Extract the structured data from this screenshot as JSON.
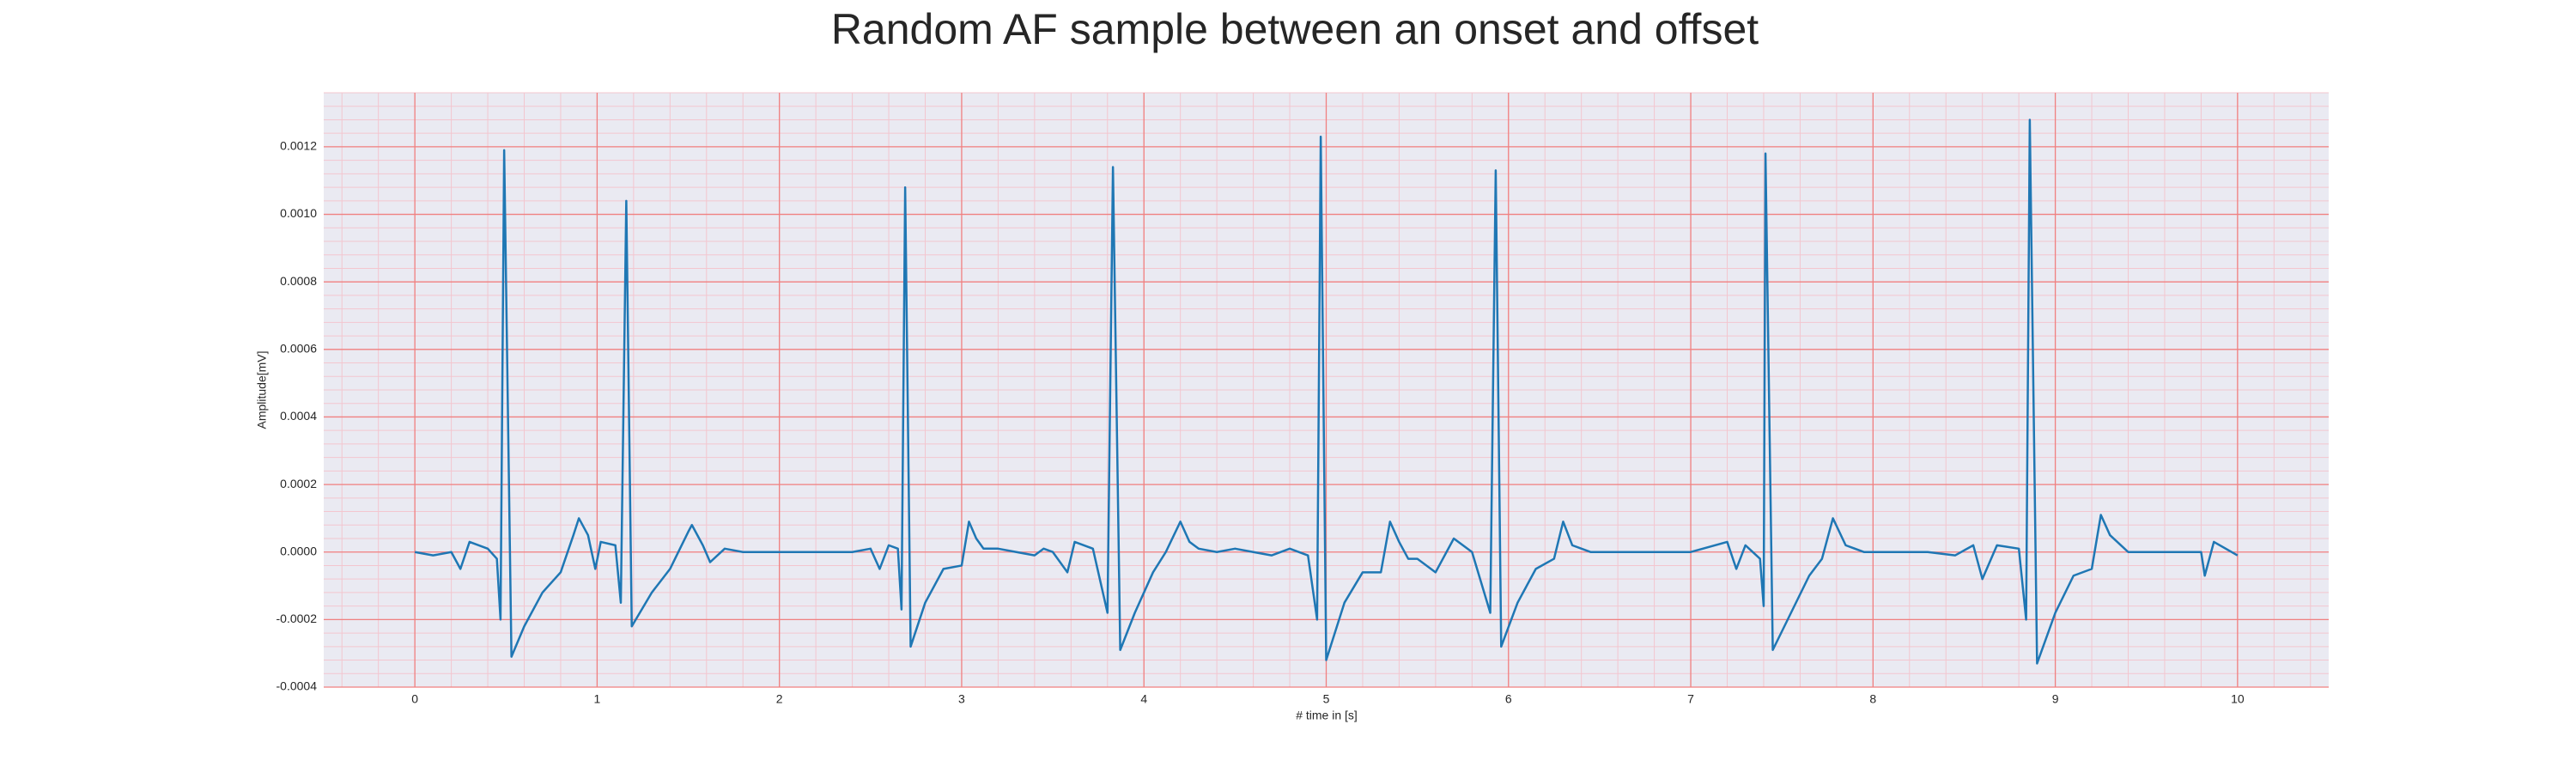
{
  "chart_data": {
    "type": "line",
    "title": "Random AF sample between an onset and offset",
    "xlabel": "# time in [s]",
    "ylabel": "Amplitude[mV]",
    "color": "#1f77b4",
    "background": "#eaeaf2",
    "grid": true,
    "grid_color": "#f08080",
    "minor_grid": true,
    "minor_grid_color": "#f3c6cf",
    "xlim": [
      -0.5,
      10.5
    ],
    "xticks": [
      0,
      1,
      2,
      3,
      4,
      5,
      6,
      7,
      8,
      9,
      10
    ],
    "ylim": [
      -0.0004,
      0.00136
    ],
    "yticks": [
      -0.0004,
      -0.0002,
      {
        "value": 0,
        "label": "0.0000"
      },
      0.0002,
      0.0004,
      0.0006,
      0.0008,
      {
        "value": 0.001,
        "label": "0.0010"
      },
      0.0012
    ],
    "x": [
      0.0,
      0.1,
      0.2,
      0.25,
      0.3,
      0.4,
      0.45,
      0.47,
      0.49,
      0.53,
      0.6,
      0.7,
      0.8,
      0.87,
      0.9,
      0.95,
      0.99,
      1.02,
      1.1,
      1.13,
      1.16,
      1.19,
      1.3,
      1.4,
      1.5,
      1.52,
      1.58,
      1.62,
      1.7,
      1.8,
      2.0,
      2.2,
      2.4,
      2.5,
      2.55,
      2.6,
      2.65,
      2.67,
      2.69,
      2.72,
      2.8,
      2.9,
      3.0,
      3.04,
      3.08,
      3.12,
      3.2,
      3.3,
      3.4,
      3.45,
      3.5,
      3.58,
      3.62,
      3.72,
      3.8,
      3.83,
      3.87,
      3.95,
      4.05,
      4.12,
      4.2,
      4.25,
      4.3,
      4.4,
      4.5,
      4.6,
      4.7,
      4.8,
      4.9,
      4.95,
      4.97,
      5.0,
      5.1,
      5.2,
      5.3,
      5.35,
      5.4,
      5.45,
      5.5,
      5.6,
      5.7,
      5.8,
      5.9,
      5.93,
      5.96,
      6.05,
      6.15,
      6.25,
      6.3,
      6.35,
      6.45,
      6.6,
      6.8,
      7.0,
      7.2,
      7.25,
      7.3,
      7.38,
      7.4,
      7.41,
      7.45,
      7.55,
      7.65,
      7.72,
      7.78,
      7.85,
      7.95,
      8.1,
      8.3,
      8.45,
      8.55,
      8.6,
      8.68,
      8.8,
      8.84,
      8.86,
      8.9,
      9.0,
      9.1,
      9.2,
      9.25,
      9.3,
      9.4,
      9.5,
      9.7,
      9.8,
      9.82,
      9.87,
      10.0
    ],
    "values": [
      0.0,
      -1e-05,
      0.0,
      -5e-05,
      3e-05,
      1e-05,
      -2e-05,
      -0.0002,
      0.00119,
      -0.00031,
      -0.00022,
      -0.00012,
      -6e-05,
      5e-05,
      0.0001,
      5e-05,
      -5e-05,
      3e-05,
      2e-05,
      -0.00015,
      0.00104,
      -0.00022,
      -0.00012,
      -5e-05,
      6e-05,
      8e-05,
      2e-05,
      -3e-05,
      1e-05,
      0.0,
      0.0,
      0.0,
      0.0,
      1e-05,
      -5e-05,
      2e-05,
      1e-05,
      -0.00017,
      0.00108,
      -0.00028,
      -0.00015,
      -5e-05,
      -4e-05,
      9e-05,
      4e-05,
      1e-05,
      1e-05,
      0.0,
      -1e-05,
      1e-05,
      0.0,
      -6e-05,
      3e-05,
      1e-05,
      -0.00018,
      0.00114,
      -0.00029,
      -0.00018,
      -6e-05,
      0.0,
      9e-05,
      3e-05,
      1e-05,
      0.0,
      1e-05,
      0.0,
      -1e-05,
      1e-05,
      -1e-05,
      -0.0002,
      0.00123,
      -0.00032,
      -0.00015,
      -6e-05,
      -6e-05,
      9e-05,
      3e-05,
      -2e-05,
      -2e-05,
      -6e-05,
      4e-05,
      0.0,
      -0.00018,
      0.00113,
      -0.00028,
      -0.00015,
      -5e-05,
      -2e-05,
      9e-05,
      2e-05,
      0.0,
      0.0,
      0.0,
      0.0,
      3e-05,
      -5e-05,
      2e-05,
      -2e-05,
      -0.00016,
      0.00118,
      -0.00029,
      -0.00018,
      -7e-05,
      -2e-05,
      0.0001,
      2e-05,
      0.0,
      0.0,
      0.0,
      -1e-05,
      2e-05,
      -8e-05,
      2e-05,
      1e-05,
      -0.0002,
      0.00128,
      -0.00033,
      -0.00018,
      -7e-05,
      -5e-05,
      0.00011,
      5e-05,
      0.0,
      0.0,
      0.0,
      0.0,
      -7e-05,
      3e-05,
      -1e-05
    ]
  }
}
